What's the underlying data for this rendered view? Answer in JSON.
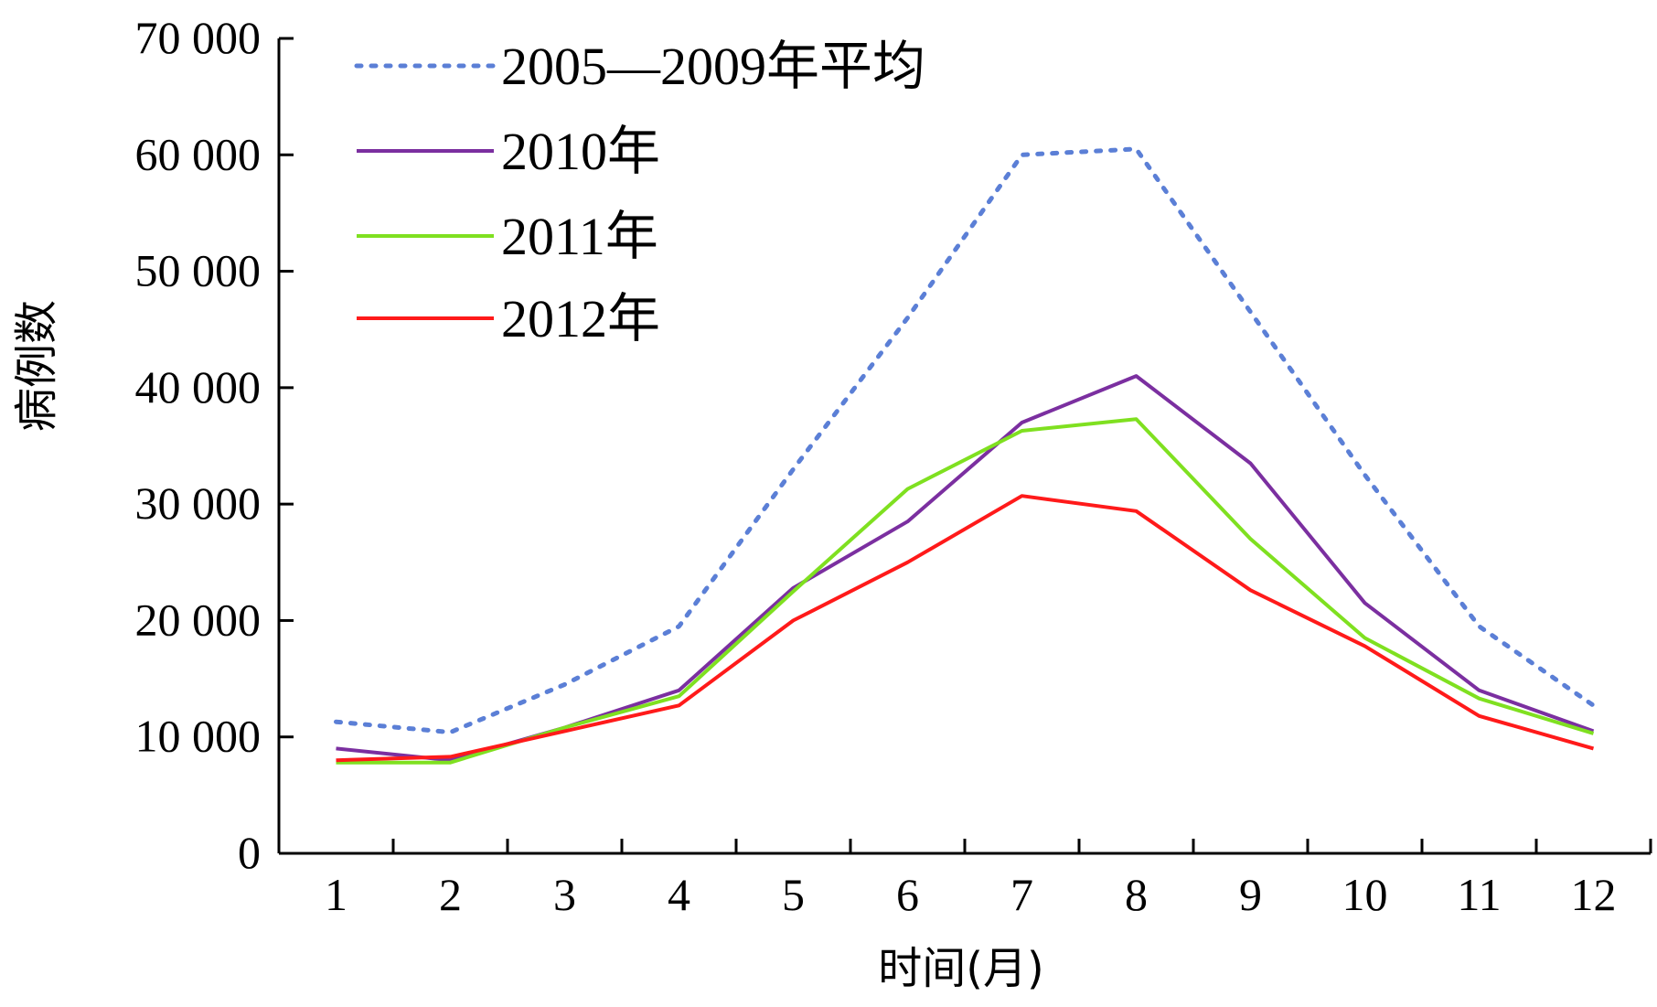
{
  "chart_data": {
    "type": "line",
    "x": [
      1,
      2,
      3,
      4,
      5,
      6,
      7,
      8,
      9,
      10,
      11,
      12
    ],
    "x_tick_labels": [
      "1",
      "2",
      "3",
      "4",
      "5",
      "6",
      "7",
      "8",
      "9",
      "10",
      "11",
      "12"
    ],
    "xlim": [
      0.5,
      12.5
    ],
    "ylim": [
      0,
      70000
    ],
    "y_ticks": [
      0,
      10000,
      20000,
      30000,
      40000,
      50000,
      60000,
      70000
    ],
    "y_tick_labels": [
      "0",
      "10 000",
      "20 000",
      "30 000",
      "40 000",
      "50 000",
      "60 000",
      "70 000"
    ],
    "xlabel": "时间(月)",
    "ylabel": "病例数",
    "grid": false,
    "legend_position": "top-left",
    "series": [
      {
        "name": "2005—2009年平均",
        "color": "#5b7fd6",
        "style": "dotted",
        "values": [
          11300,
          10400,
          14500,
          19500,
          33000,
          46000,
          60000,
          60500,
          46500,
          32500,
          19500,
          12700
        ]
      },
      {
        "name": "2010年",
        "color": "#7b2fa0",
        "style": "solid",
        "values": [
          9000,
          8000,
          10800,
          14000,
          22800,
          28500,
          37000,
          41000,
          33500,
          21500,
          14000,
          10500
        ]
      },
      {
        "name": "2011年",
        "color": "#7fe020",
        "style": "solid",
        "values": [
          7800,
          7800,
          10800,
          13500,
          22500,
          31300,
          36300,
          37300,
          27000,
          18500,
          13300,
          10300
        ]
      },
      {
        "name": "2012年",
        "color": "#ff1a1a",
        "style": "solid",
        "values": [
          8000,
          8300,
          10500,
          12700,
          20000,
          25000,
          30700,
          29400,
          22600,
          17800,
          11800,
          9000
        ]
      }
    ]
  }
}
